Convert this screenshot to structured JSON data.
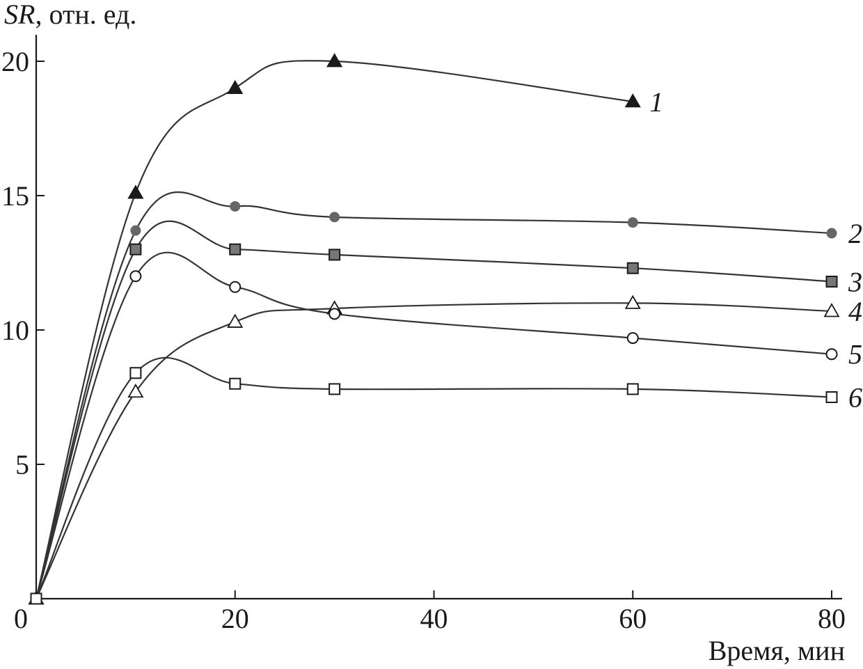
{
  "chart_data": {
    "type": "line",
    "ylabel_italic": "SR",
    "ylabel_rest": ", отн. ед.",
    "xlabel": "Время, мин",
    "xlim": [
      0,
      80
    ],
    "ylim": [
      0,
      21
    ],
    "xticks": [
      0,
      20,
      40,
      60,
      80
    ],
    "yticks": [
      5,
      10,
      15,
      20
    ],
    "grid": false,
    "series": [
      {
        "label": "1",
        "marker": "triangle-filled",
        "color": "#1a1a1a",
        "x": [
          0,
          10,
          20,
          30,
          60
        ],
        "y": [
          0,
          15.1,
          19.0,
          20.0,
          18.5
        ]
      },
      {
        "label": "2",
        "marker": "circle-filled",
        "color": "#666666",
        "x": [
          0,
          10,
          20,
          30,
          60,
          80
        ],
        "y": [
          0,
          13.7,
          14.6,
          14.2,
          14.0,
          13.6
        ]
      },
      {
        "label": "3",
        "marker": "square-filled",
        "color": "#777777",
        "x": [
          0,
          10,
          20,
          30,
          60,
          80
        ],
        "y": [
          0,
          13.0,
          13.0,
          12.8,
          12.3,
          11.8
        ]
      },
      {
        "label": "4",
        "marker": "triangle-open",
        "color": "#ffffff",
        "x": [
          0,
          10,
          20,
          30,
          60,
          80
        ],
        "y": [
          0,
          7.7,
          10.3,
          10.8,
          11.0,
          10.7
        ]
      },
      {
        "label": "5",
        "marker": "circle-open",
        "color": "#ffffff",
        "x": [
          0,
          10,
          20,
          30,
          60,
          80
        ],
        "y": [
          0,
          12.0,
          11.6,
          10.6,
          9.7,
          9.1
        ]
      },
      {
        "label": "6",
        "marker": "square-open",
        "color": "#ffffff",
        "x": [
          0,
          10,
          20,
          30,
          60,
          80
        ],
        "y": [
          0,
          8.4,
          8.0,
          7.8,
          7.8,
          7.5
        ]
      }
    ]
  }
}
